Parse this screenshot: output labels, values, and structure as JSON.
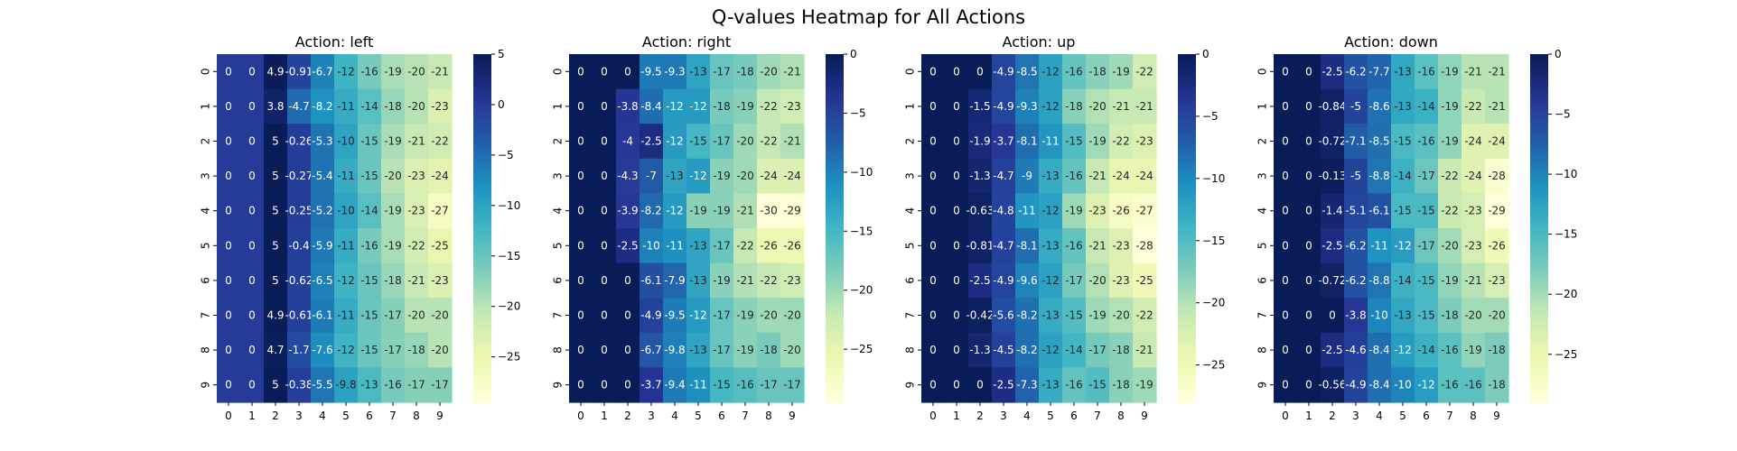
{
  "figure": {
    "title": "Q-values Heatmap for All Actions"
  },
  "colormap": {
    "name": "YlGnBu",
    "stops": [
      "#ffffd9",
      "#edf8b1",
      "#c7e9b4",
      "#7fcdbb",
      "#41b6c4",
      "#1d91c0",
      "#225ea8",
      "#253494",
      "#081d58"
    ],
    "annotation_light_text": "#ffffff",
    "annotation_dark_text": "#262626"
  },
  "chart_data": [
    {
      "type": "heatmap",
      "title": "Action: left",
      "x_ticks": [
        "0",
        "1",
        "2",
        "3",
        "4",
        "5",
        "6",
        "7",
        "8",
        "9"
      ],
      "y_ticks": [
        "0",
        "1",
        "2",
        "3",
        "4",
        "5",
        "6",
        "7",
        "8",
        "9"
      ],
      "colorbar_range": [
        -29.5,
        5
      ],
      "colorbar_ticks": [
        5,
        0,
        -5,
        -10,
        -15,
        -20,
        -25
      ],
      "colorbar_tick_labels": [
        "5",
        "0",
        "−5",
        "−10",
        "−15",
        "−20",
        "−25"
      ],
      "values": [
        [
          0,
          0,
          4.9,
          -0.91,
          -6.7,
          -12,
          -16,
          -19,
          -20,
          -21
        ],
        [
          0,
          0,
          3.8,
          -4.7,
          -8.2,
          -11,
          -14,
          -18,
          -20,
          -23
        ],
        [
          0,
          0,
          5,
          -0.26,
          -5.3,
          -10,
          -15,
          -19,
          -21,
          -22
        ],
        [
          0,
          0,
          5,
          -0.27,
          -5.4,
          -11,
          -15,
          -20,
          -23,
          -24
        ],
        [
          0,
          0,
          5,
          -0.25,
          -5.2,
          -10,
          -14,
          -19,
          -23,
          -27
        ],
        [
          0,
          0,
          5,
          -0.4,
          -5.9,
          -11,
          -16,
          -19,
          -22,
          -25
        ],
        [
          0,
          0,
          5,
          -0.62,
          -6.5,
          -12,
          -15,
          -18,
          -21,
          -23
        ],
        [
          0,
          0,
          4.9,
          -0.61,
          -6.1,
          -11,
          -15,
          -17,
          -20,
          -20
        ],
        [
          0,
          0,
          4.7,
          -1.7,
          -7.6,
          -12,
          -15,
          -17,
          -18,
          -20
        ],
        [
          0,
          0,
          5,
          -0.38,
          -5.5,
          -9.8,
          -13,
          -16,
          -17,
          -17
        ]
      ],
      "labels": [
        [
          "0",
          "0",
          "4.9",
          "-0.91",
          "-6.7",
          "-12",
          "-16",
          "-19",
          "-20",
          "-21"
        ],
        [
          "0",
          "0",
          "3.8",
          "-4.7",
          "-8.2",
          "-11",
          "-14",
          "-18",
          "-20",
          "-23"
        ],
        [
          "0",
          "0",
          "5",
          "-0.26",
          "-5.3",
          "-10",
          "-15",
          "-19",
          "-21",
          "-22"
        ],
        [
          "0",
          "0",
          "5",
          "-0.27",
          "-5.4",
          "-11",
          "-15",
          "-20",
          "-23",
          "-24"
        ],
        [
          "0",
          "0",
          "5",
          "-0.25",
          "-5.2",
          "-10",
          "-14",
          "-19",
          "-23",
          "-27"
        ],
        [
          "0",
          "0",
          "5",
          "-0.4",
          "-5.9",
          "-11",
          "-16",
          "-19",
          "-22",
          "-25"
        ],
        [
          "0",
          "0",
          "5",
          "-0.62",
          "-6.5",
          "-12",
          "-15",
          "-18",
          "-21",
          "-23"
        ],
        [
          "0",
          "0",
          "4.9",
          "-0.61",
          "-6.1",
          "-11",
          "-15",
          "-17",
          "-20",
          "-20"
        ],
        [
          "0",
          "0",
          "4.7",
          "-1.7",
          "-7.6",
          "-12",
          "-15",
          "-17",
          "-18",
          "-20"
        ],
        [
          "0",
          "0",
          "5",
          "-0.38",
          "-5.5",
          "-9.8",
          "-13",
          "-16",
          "-17",
          "-17"
        ]
      ]
    },
    {
      "type": "heatmap",
      "title": "Action: right",
      "x_ticks": [
        "0",
        "1",
        "2",
        "3",
        "4",
        "5",
        "6",
        "7",
        "8",
        "9"
      ],
      "y_ticks": [
        "0",
        "1",
        "2",
        "3",
        "4",
        "5",
        "6",
        "7",
        "8",
        "9"
      ],
      "colorbar_range": [
        -29.5,
        0
      ],
      "colorbar_ticks": [
        0,
        -5,
        -10,
        -15,
        -20,
        -25
      ],
      "colorbar_tick_labels": [
        "0",
        "−5",
        "−10",
        "−15",
        "−20",
        "−25"
      ],
      "values": [
        [
          0,
          0,
          0,
          -9.5,
          -9.3,
          -13,
          -17,
          -18,
          -20,
          -21
        ],
        [
          0,
          0,
          -3.8,
          -8.4,
          -12,
          -12,
          -18,
          -19,
          -22,
          -23
        ],
        [
          0,
          0,
          -4,
          -2.5,
          -12,
          -15,
          -17,
          -20,
          -22,
          -21
        ],
        [
          0,
          0,
          -4.3,
          -7,
          -13,
          -12,
          -19,
          -20,
          -24,
          -24
        ],
        [
          0,
          0,
          -3.9,
          -8.2,
          -12,
          -19,
          -19,
          -21,
          -30,
          -29
        ],
        [
          0,
          0,
          -2.5,
          -10,
          -11,
          -13,
          -17,
          -22,
          -26,
          -26
        ],
        [
          0,
          0,
          0,
          -6.1,
          -7.9,
          -13,
          -19,
          -21,
          -22,
          -23
        ],
        [
          0,
          0,
          0,
          -4.9,
          -9.5,
          -12,
          -17,
          -19,
          -20,
          -20
        ],
        [
          0,
          0,
          0,
          -6.7,
          -9.8,
          -13,
          -17,
          -19,
          -18,
          -20
        ],
        [
          0,
          0,
          0,
          -3.7,
          -9.4,
          -11,
          -15,
          -16,
          -17,
          -17
        ]
      ],
      "labels": [
        [
          "0",
          "0",
          "0",
          "-9.5",
          "-9.3",
          "-13",
          "-17",
          "-18",
          "-20",
          "-21"
        ],
        [
          "0",
          "0",
          "-3.8",
          "-8.4",
          "-12",
          "-12",
          "-18",
          "-19",
          "-22",
          "-23"
        ],
        [
          "0",
          "0",
          "-4",
          "-2.5",
          "-12",
          "-15",
          "-17",
          "-20",
          "-22",
          "-21"
        ],
        [
          "0",
          "0",
          "-4.3",
          "-7",
          "-13",
          "-12",
          "-19",
          "-20",
          "-24",
          "-24"
        ],
        [
          "0",
          "0",
          "-3.9",
          "-8.2",
          "-12",
          "-19",
          "-19",
          "-21",
          "-30",
          "-29"
        ],
        [
          "0",
          "0",
          "-2.5",
          "-10",
          "-11",
          "-13",
          "-17",
          "-22",
          "-26",
          "-26"
        ],
        [
          "0",
          "0",
          "0",
          "-6.1",
          "-7.9",
          "-13",
          "-19",
          "-21",
          "-22",
          "-23"
        ],
        [
          "0",
          "0",
          "0",
          "-4.9",
          "-9.5",
          "-12",
          "-17",
          "-19",
          "-20",
          "-20"
        ],
        [
          "0",
          "0",
          "0",
          "-6.7",
          "-9.8",
          "-13",
          "-17",
          "-19",
          "-18",
          "-20"
        ],
        [
          "0",
          "0",
          "0",
          "-3.7",
          "-9.4",
          "-11",
          "-15",
          "-16",
          "-17",
          "-17"
        ]
      ]
    },
    {
      "type": "heatmap",
      "title": "Action: up",
      "x_ticks": [
        "0",
        "1",
        "2",
        "3",
        "4",
        "5",
        "6",
        "7",
        "8",
        "9"
      ],
      "y_ticks": [
        "0",
        "1",
        "2",
        "3",
        "4",
        "5",
        "6",
        "7",
        "8",
        "9"
      ],
      "colorbar_range": [
        -28,
        0
      ],
      "colorbar_ticks": [
        0,
        -5,
        -10,
        -15,
        -20,
        -25
      ],
      "colorbar_tick_labels": [
        "0",
        "−5",
        "−10",
        "−15",
        "−20",
        "−25"
      ],
      "values": [
        [
          0,
          0,
          0,
          -4.9,
          -8.5,
          -12,
          -16,
          -18,
          -19,
          -22
        ],
        [
          0,
          0,
          -1.5,
          -4.9,
          -9.3,
          -12,
          -18,
          -20,
          -21,
          -21
        ],
        [
          0,
          0,
          -1.9,
          -3.7,
          -8.1,
          -11,
          -15,
          -19,
          -22,
          -23
        ],
        [
          0,
          0,
          -1.3,
          -4.7,
          -9,
          -13,
          -16,
          -21,
          -24,
          -24
        ],
        [
          0,
          0,
          -0.63,
          -4.8,
          -11,
          -12,
          -19,
          -23,
          -26,
          -27
        ],
        [
          0,
          0,
          -0.81,
          -4.7,
          -8.1,
          -13,
          -16,
          -21,
          -23,
          -28
        ],
        [
          0,
          0,
          -2.5,
          -4.9,
          -9.6,
          -12,
          -17,
          -20,
          -23,
          -25
        ],
        [
          0,
          0,
          -0.42,
          -5.6,
          -8.2,
          -13,
          -15,
          -19,
          -20,
          -22
        ],
        [
          0,
          0,
          -1.3,
          -4.5,
          -8.2,
          -12,
          -14,
          -17,
          -18,
          -21
        ],
        [
          0,
          0,
          0,
          -2.5,
          -7.3,
          -13,
          -16,
          -15,
          -18,
          -19
        ]
      ],
      "labels": [
        [
          "0",
          "0",
          "0",
          "-4.9",
          "-8.5",
          "-12",
          "-16",
          "-18",
          "-19",
          "-22"
        ],
        [
          "0",
          "0",
          "-1.5",
          "-4.9",
          "-9.3",
          "-12",
          "-18",
          "-20",
          "-21",
          "-21"
        ],
        [
          "0",
          "0",
          "-1.9",
          "-3.7",
          "-8.1",
          "-11",
          "-15",
          "-19",
          "-22",
          "-23"
        ],
        [
          "0",
          "0",
          "-1.3",
          "-4.7",
          "-9",
          "-13",
          "-16",
          "-21",
          "-24",
          "-24"
        ],
        [
          "0",
          "0",
          "-0.63",
          "-4.8",
          "-11",
          "-12",
          "-19",
          "-23",
          "-26",
          "-27"
        ],
        [
          "0",
          "0",
          "-0.81",
          "-4.7",
          "-8.1",
          "-13",
          "-16",
          "-21",
          "-23",
          "-28"
        ],
        [
          "0",
          "0",
          "-2.5",
          "-4.9",
          "-9.6",
          "-12",
          "-17",
          "-20",
          "-23",
          "-25"
        ],
        [
          "0",
          "0",
          "-0.42",
          "-5.6",
          "-8.2",
          "-13",
          "-15",
          "-19",
          "-20",
          "-22"
        ],
        [
          "0",
          "0",
          "-1.3",
          "-4.5",
          "-8.2",
          "-12",
          "-14",
          "-17",
          "-18",
          "-21"
        ],
        [
          "0",
          "0",
          "0",
          "-2.5",
          "-7.3",
          "-13",
          "-16",
          "-15",
          "-18",
          "-19"
        ]
      ]
    },
    {
      "type": "heatmap",
      "title": "Action: down",
      "x_ticks": [
        "0",
        "1",
        "2",
        "3",
        "4",
        "5",
        "6",
        "7",
        "8",
        "9"
      ],
      "y_ticks": [
        "0",
        "1",
        "2",
        "3",
        "4",
        "5",
        "6",
        "7",
        "8",
        "9"
      ],
      "colorbar_range": [
        -29,
        0
      ],
      "colorbar_ticks": [
        0,
        -5,
        -10,
        -15,
        -20,
        -25
      ],
      "colorbar_tick_labels": [
        "0",
        "−5",
        "−10",
        "−15",
        "−20",
        "−25"
      ],
      "values": [
        [
          0,
          0,
          -2.5,
          -6.2,
          -7.7,
          -13,
          -16,
          -19,
          -21,
          -21
        ],
        [
          0,
          0,
          -0.84,
          -5,
          -8.6,
          -13,
          -14,
          -19,
          -22,
          -21
        ],
        [
          0,
          0,
          -0.72,
          -7.1,
          -8.5,
          -15,
          -16,
          -19,
          -24,
          -24
        ],
        [
          0,
          0,
          -0.13,
          -5,
          -8.8,
          -14,
          -17,
          -22,
          -24,
          -28
        ],
        [
          0,
          0,
          -1.4,
          -5.1,
          -6.1,
          -15,
          -15,
          -22,
          -23,
          -29
        ],
        [
          0,
          0,
          -2.5,
          -6.2,
          -11,
          -12,
          -17,
          -20,
          -23,
          -26
        ],
        [
          0,
          0,
          -0.72,
          -6.2,
          -8.8,
          -14,
          -15,
          -19,
          -21,
          -23
        ],
        [
          0,
          0,
          0,
          -3.8,
          -10,
          -13,
          -15,
          -18,
          -20,
          -20
        ],
        [
          0,
          0,
          -2.5,
          -4.6,
          -8.4,
          -12,
          -14,
          -16,
          -19,
          -18
        ],
        [
          0,
          0,
          -0.56,
          -4.9,
          -8.4,
          -10,
          -12,
          -16,
          -16,
          -18
        ]
      ],
      "labels": [
        [
          "0",
          "0",
          "-2.5",
          "-6.2",
          "-7.7",
          "-13",
          "-16",
          "-19",
          "-21",
          "-21"
        ],
        [
          "0",
          "0",
          "-0.84",
          "-5",
          "-8.6",
          "-13",
          "-14",
          "-19",
          "-22",
          "-21"
        ],
        [
          "0",
          "0",
          "-0.72",
          "-7.1",
          "-8.5",
          "-15",
          "-16",
          "-19",
          "-24",
          "-24"
        ],
        [
          "0",
          "0",
          "-0.13",
          "-5",
          "-8.8",
          "-14",
          "-17",
          "-22",
          "-24",
          "-28"
        ],
        [
          "0",
          "0",
          "-1.4",
          "-5.1",
          "-6.1",
          "-15",
          "-15",
          "-22",
          "-23",
          "-29"
        ],
        [
          "0",
          "0",
          "-2.5",
          "-6.2",
          "-11",
          "-12",
          "-17",
          "-20",
          "-23",
          "-26"
        ],
        [
          "0",
          "0",
          "-0.72",
          "-6.2",
          "-8.8",
          "-14",
          "-15",
          "-19",
          "-21",
          "-23"
        ],
        [
          "0",
          "0",
          "0",
          "-3.8",
          "-10",
          "-13",
          "-15",
          "-18",
          "-20",
          "-20"
        ],
        [
          "0",
          "0",
          "-2.5",
          "-4.6",
          "-8.4",
          "-12",
          "-14",
          "-16",
          "-19",
          "-18"
        ],
        [
          "0",
          "0",
          "-0.56",
          "-4.9",
          "-8.4",
          "-10",
          "-12",
          "-16",
          "-16",
          "-18"
        ]
      ]
    }
  ]
}
